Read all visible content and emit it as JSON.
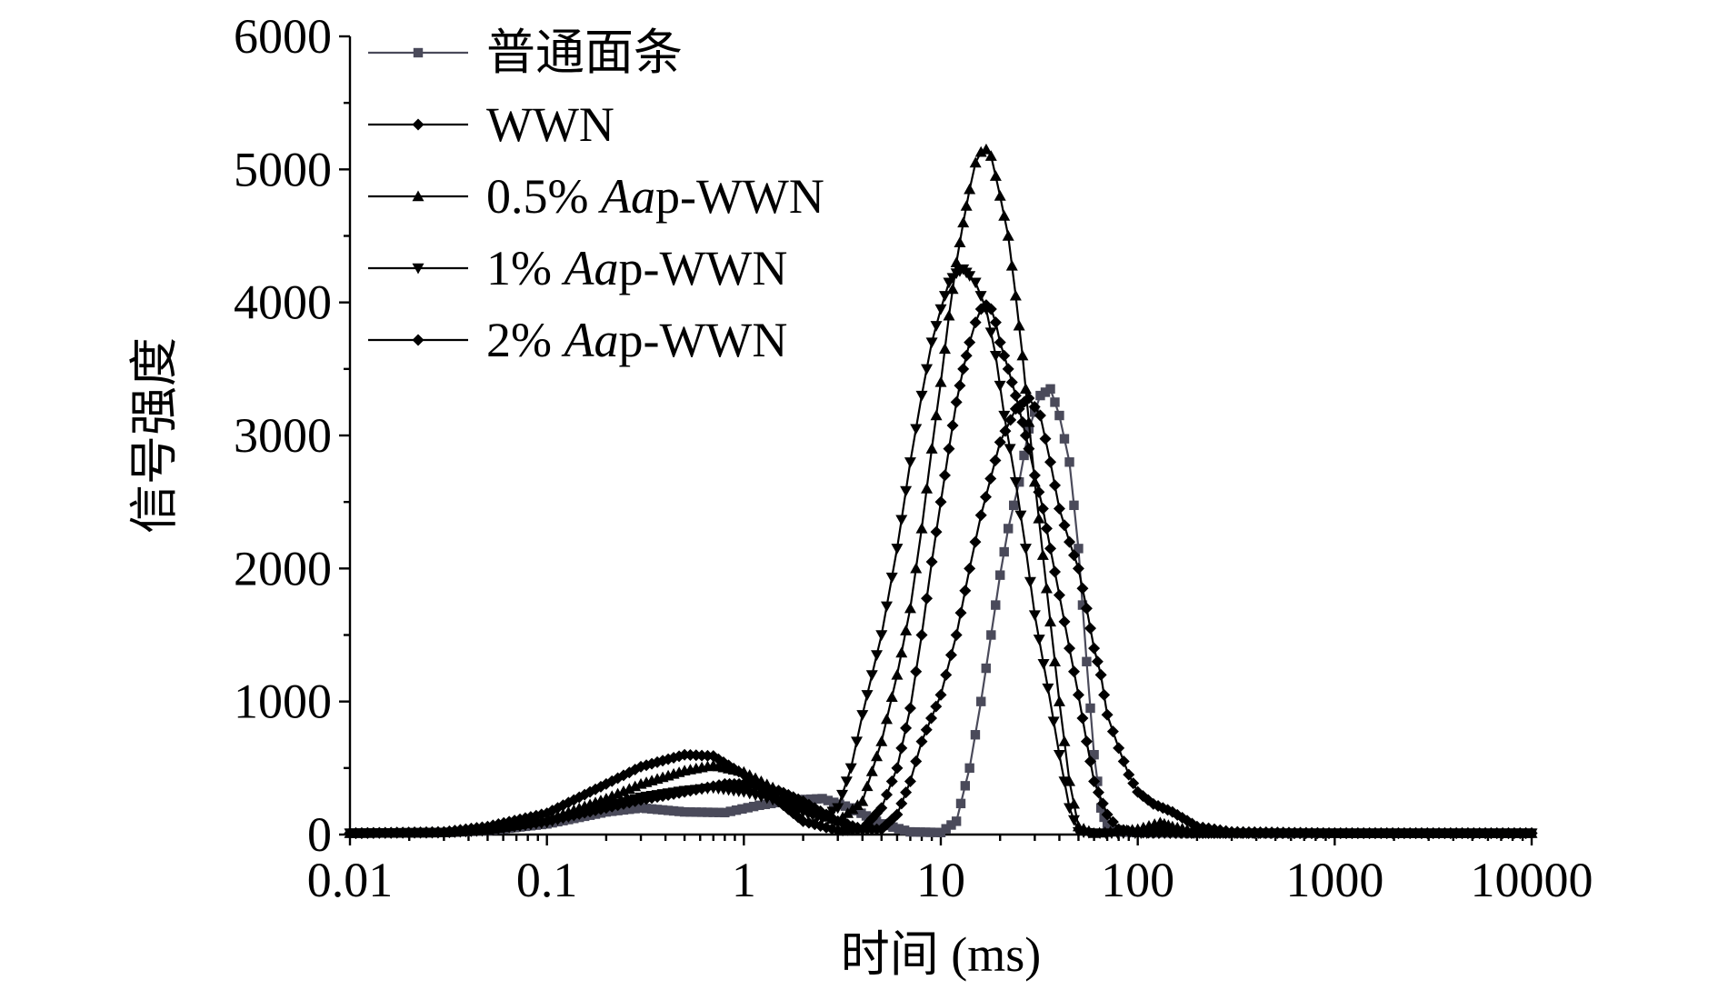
{
  "chart_data": {
    "type": "line",
    "xlabel": "时间 (ms)",
    "ylabel": "信号强度",
    "x_scale": "log",
    "xlim": [
      0.01,
      10000
    ],
    "ylim": [
      0,
      6000
    ],
    "x_ticks": [
      {
        "value": 0.01,
        "label": "0.01"
      },
      {
        "value": 0.1,
        "label": "0.1"
      },
      {
        "value": 1,
        "label": "1"
      },
      {
        "value": 10,
        "label": "10"
      },
      {
        "value": 100,
        "label": "100"
      },
      {
        "value": 1000,
        "label": "1000"
      },
      {
        "value": 10000,
        "label": "10000"
      }
    ],
    "y_ticks": [
      {
        "value": 0,
        "label": "0"
      },
      {
        "value": 1000,
        "label": "1000"
      },
      {
        "value": 2000,
        "label": "2000"
      },
      {
        "value": 3000,
        "label": "3000"
      },
      {
        "value": 4000,
        "label": "4000"
      },
      {
        "value": 5000,
        "label": "5000"
      },
      {
        "value": 6000,
        "label": "6000"
      }
    ],
    "legend_position": "top-left",
    "series": [
      {
        "name": "普通面条",
        "marker": "square",
        "color": "#4a4a5a",
        "points": [
          [
            0.01,
            10
          ],
          [
            0.03,
            15
          ],
          [
            0.05,
            30
          ],
          [
            0.1,
            80
          ],
          [
            0.2,
            170
          ],
          [
            0.3,
            200
          ],
          [
            0.5,
            170
          ],
          [
            0.8,
            165
          ],
          [
            1.2,
            220
          ],
          [
            1.8,
            260
          ],
          [
            2.5,
            270
          ],
          [
            3.5,
            200
          ],
          [
            5,
            80
          ],
          [
            7,
            20
          ],
          [
            10,
            15
          ],
          [
            12,
            100
          ],
          [
            14,
            500
          ],
          [
            16,
            1000
          ],
          [
            18,
            1500
          ],
          [
            20,
            1950
          ],
          [
            22,
            2300
          ],
          [
            25,
            2650
          ],
          [
            28,
            3050
          ],
          [
            32,
            3300
          ],
          [
            36,
            3350
          ],
          [
            40,
            3150
          ],
          [
            45,
            2800
          ],
          [
            50,
            2150
          ],
          [
            55,
            1300
          ],
          [
            60,
            600
          ],
          [
            65,
            200
          ],
          [
            70,
            60
          ],
          [
            80,
            20
          ],
          [
            100,
            15
          ],
          [
            200,
            10
          ],
          [
            1000,
            10
          ],
          [
            10000,
            10
          ]
        ]
      },
      {
        "name": "WWN",
        "marker": "diamond",
        "color": "#000000",
        "points": [
          [
            0.01,
            10
          ],
          [
            0.03,
            15
          ],
          [
            0.05,
            35
          ],
          [
            0.1,
            100
          ],
          [
            0.2,
            200
          ],
          [
            0.3,
            260
          ],
          [
            0.5,
            320
          ],
          [
            0.8,
            380
          ],
          [
            1,
            380
          ],
          [
            1.5,
            330
          ],
          [
            2,
            250
          ],
          [
            3,
            100
          ],
          [
            4,
            40
          ],
          [
            5,
            40
          ],
          [
            6,
            150
          ],
          [
            7,
            400
          ],
          [
            8,
            700
          ],
          [
            10,
            1050
          ],
          [
            12,
            1500
          ],
          [
            14,
            2000
          ],
          [
            16,
            2400
          ],
          [
            20,
            2950
          ],
          [
            24,
            3200
          ],
          [
            28,
            3280
          ],
          [
            32,
            3150
          ],
          [
            36,
            2800
          ],
          [
            40,
            2450
          ],
          [
            45,
            2200
          ],
          [
            50,
            2000
          ],
          [
            55,
            1700
          ],
          [
            60,
            1400
          ],
          [
            65,
            1200
          ],
          [
            70,
            900
          ],
          [
            80,
            650
          ],
          [
            90,
            450
          ],
          [
            100,
            320
          ],
          [
            120,
            230
          ],
          [
            150,
            170
          ],
          [
            200,
            60
          ],
          [
            300,
            20
          ],
          [
            1000,
            10
          ],
          [
            10000,
            10
          ]
        ]
      },
      {
        "name": "0.5% Aap-WWN",
        "marker": "triangle-up",
        "color": "#000000",
        "points": [
          [
            0.01,
            10
          ],
          [
            0.03,
            15
          ],
          [
            0.05,
            35
          ],
          [
            0.1,
            110
          ],
          [
            0.2,
            270
          ],
          [
            0.3,
            380
          ],
          [
            0.5,
            480
          ],
          [
            0.7,
            520
          ],
          [
            1,
            470
          ],
          [
            1.5,
            330
          ],
          [
            2,
            200
          ],
          [
            3,
            100
          ],
          [
            4,
            250
          ],
          [
            5,
            700
          ],
          [
            6,
            1200
          ],
          [
            7,
            1700
          ],
          [
            8,
            2300
          ],
          [
            9,
            2900
          ],
          [
            10,
            3400
          ],
          [
            11,
            3900
          ],
          [
            12,
            4300
          ],
          [
            13,
            4600
          ],
          [
            14,
            4850
          ],
          [
            15,
            5050
          ],
          [
            16,
            5130
          ],
          [
            17,
            5150
          ],
          [
            18,
            5100
          ],
          [
            19,
            4950
          ],
          [
            20,
            4800
          ],
          [
            22,
            4500
          ],
          [
            24,
            4050
          ],
          [
            26,
            3600
          ],
          [
            28,
            3100
          ],
          [
            30,
            2650
          ],
          [
            33,
            2100
          ],
          [
            36,
            1600
          ],
          [
            40,
            1000
          ],
          [
            45,
            400
          ],
          [
            50,
            60
          ],
          [
            60,
            10
          ],
          [
            100,
            40
          ],
          [
            130,
            90
          ],
          [
            150,
            60
          ],
          [
            200,
            20
          ],
          [
            1000,
            10
          ],
          [
            10000,
            10
          ]
        ]
      },
      {
        "name": "1% Aap-WWN",
        "marker": "triangle-down",
        "color": "#000000",
        "points": [
          [
            0.01,
            10
          ],
          [
            0.03,
            15
          ],
          [
            0.05,
            30
          ],
          [
            0.1,
            90
          ],
          [
            0.2,
            210
          ],
          [
            0.3,
            280
          ],
          [
            0.5,
            330
          ],
          [
            0.7,
            350
          ],
          [
            1,
            320
          ],
          [
            1.5,
            250
          ],
          [
            2,
            170
          ],
          [
            2.5,
            120
          ],
          [
            3,
            200
          ],
          [
            3.5,
            500
          ],
          [
            4,
            900
          ],
          [
            5,
            1500
          ],
          [
            6,
            2150
          ],
          [
            7,
            2800
          ],
          [
            8,
            3300
          ],
          [
            9,
            3700
          ],
          [
            10,
            3950
          ],
          [
            11,
            4150
          ],
          [
            12,
            4220
          ],
          [
            13,
            4250
          ],
          [
            14,
            4200
          ],
          [
            15,
            4150
          ],
          [
            17,
            3950
          ],
          [
            19,
            3600
          ],
          [
            21,
            3150
          ],
          [
            24,
            2650
          ],
          [
            27,
            2150
          ],
          [
            30,
            1650
          ],
          [
            35,
            1100
          ],
          [
            40,
            600
          ],
          [
            45,
            200
          ],
          [
            50,
            20
          ],
          [
            60,
            10
          ],
          [
            1000,
            10
          ],
          [
            10000,
            10
          ]
        ]
      },
      {
        "name": "2% Aap-WWN",
        "marker": "diamond",
        "color": "#000000",
        "points": [
          [
            0.01,
            10
          ],
          [
            0.03,
            20
          ],
          [
            0.05,
            60
          ],
          [
            0.1,
            160
          ],
          [
            0.2,
            380
          ],
          [
            0.3,
            510
          ],
          [
            0.5,
            600
          ],
          [
            0.7,
            590
          ],
          [
            1,
            450
          ],
          [
            1.5,
            250
          ],
          [
            2,
            100
          ],
          [
            3,
            30
          ],
          [
            4,
            40
          ],
          [
            5,
            200
          ],
          [
            6,
            500
          ],
          [
            7,
            950
          ],
          [
            8,
            1500
          ],
          [
            9,
            2050
          ],
          [
            10,
            2500
          ],
          [
            11,
            2900
          ],
          [
            12,
            3250
          ],
          [
            13,
            3500
          ],
          [
            14,
            3700
          ],
          [
            15,
            3850
          ],
          [
            16,
            3950
          ],
          [
            17,
            3980
          ],
          [
            18,
            3950
          ],
          [
            19,
            3850
          ],
          [
            20,
            3700
          ],
          [
            22,
            3500
          ],
          [
            24,
            3300
          ],
          [
            26,
            3100
          ],
          [
            28,
            2900
          ],
          [
            30,
            2700
          ],
          [
            33,
            2450
          ],
          [
            36,
            2150
          ],
          [
            40,
            1800
          ],
          [
            45,
            1400
          ],
          [
            50,
            1050
          ],
          [
            55,
            700
          ],
          [
            60,
            400
          ],
          [
            70,
            150
          ],
          [
            80,
            40
          ],
          [
            100,
            15
          ],
          [
            200,
            10
          ],
          [
            1000,
            10
          ],
          [
            10000,
            10
          ]
        ]
      }
    ]
  }
}
